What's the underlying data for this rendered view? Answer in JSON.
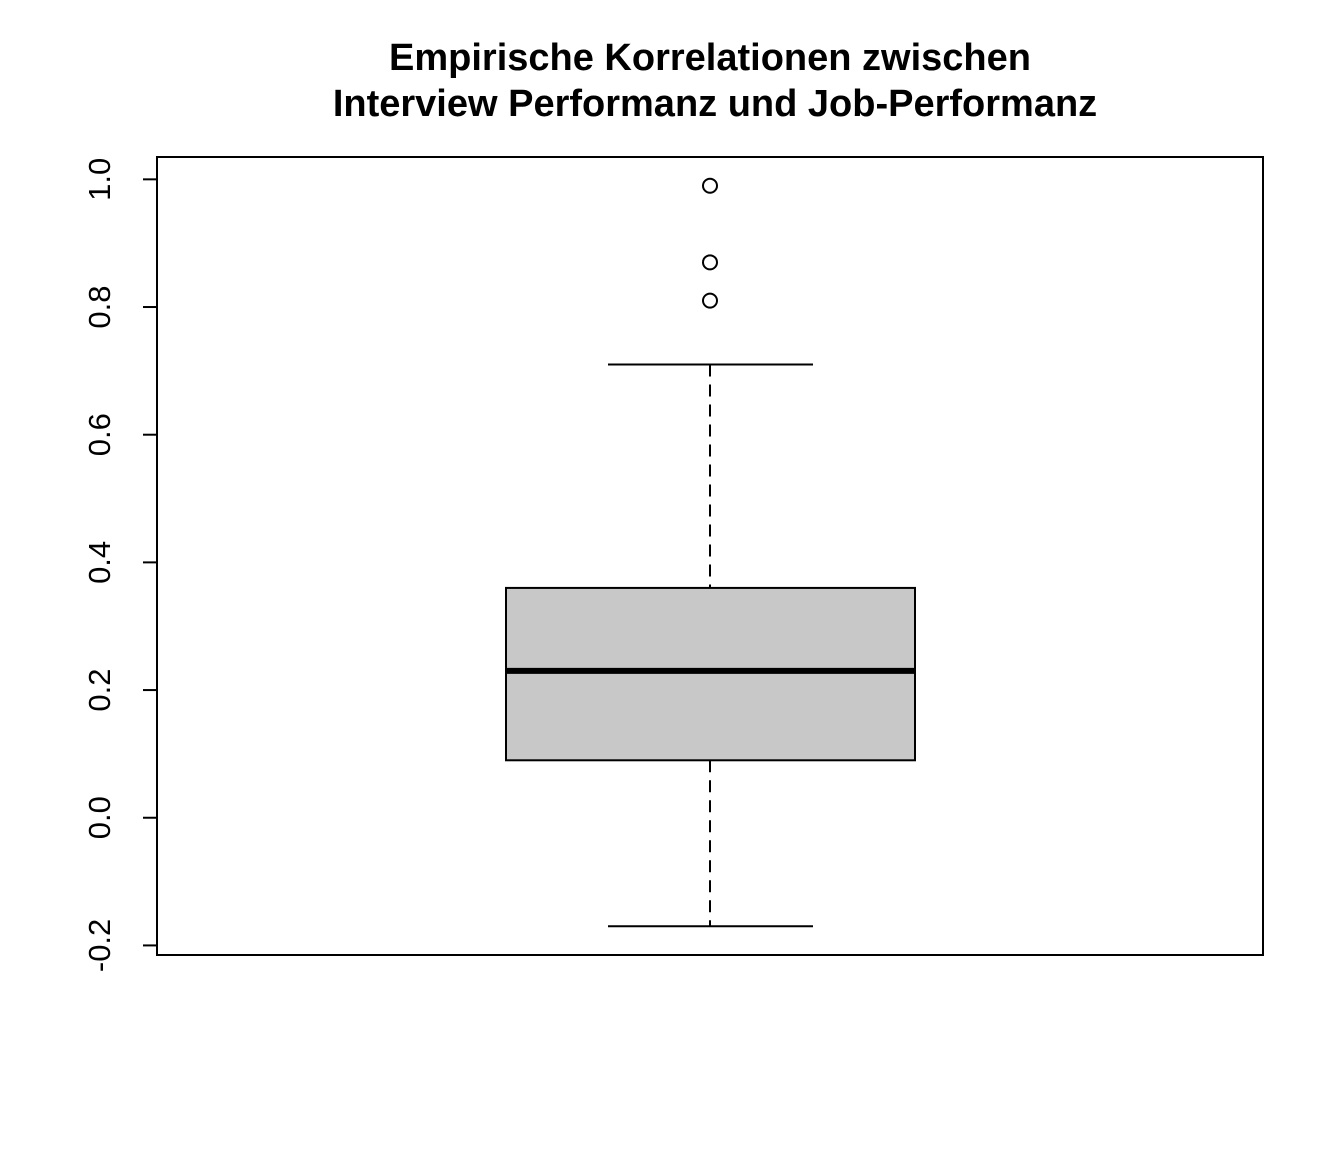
{
  "chart_data": {
    "type": "boxplot",
    "title_lines": [
      "Empirische Korrelationen zwischen",
      "Interview Performanz und Job-Performanz"
    ],
    "xlabel": "",
    "ylabel": "",
    "ylim": [
      -0.215,
      1.035
    ],
    "y_ticks": [
      -0.2,
      0.0,
      0.2,
      0.4,
      0.6,
      0.8,
      1.0
    ],
    "y_tick_labels": [
      "-0.2",
      "0.0",
      "0.2",
      "0.4",
      "0.6",
      "0.8",
      "1.0"
    ],
    "grid": false,
    "box": {
      "whisker_low": -0.17,
      "q1": 0.09,
      "median": 0.23,
      "q3": 0.36,
      "whisker_high": 0.71,
      "outliers": [
        0.81,
        0.87,
        0.99
      ]
    },
    "colors": {
      "box_fill": "#c8c8c8",
      "stroke": "#000000",
      "background": "#ffffff"
    }
  }
}
